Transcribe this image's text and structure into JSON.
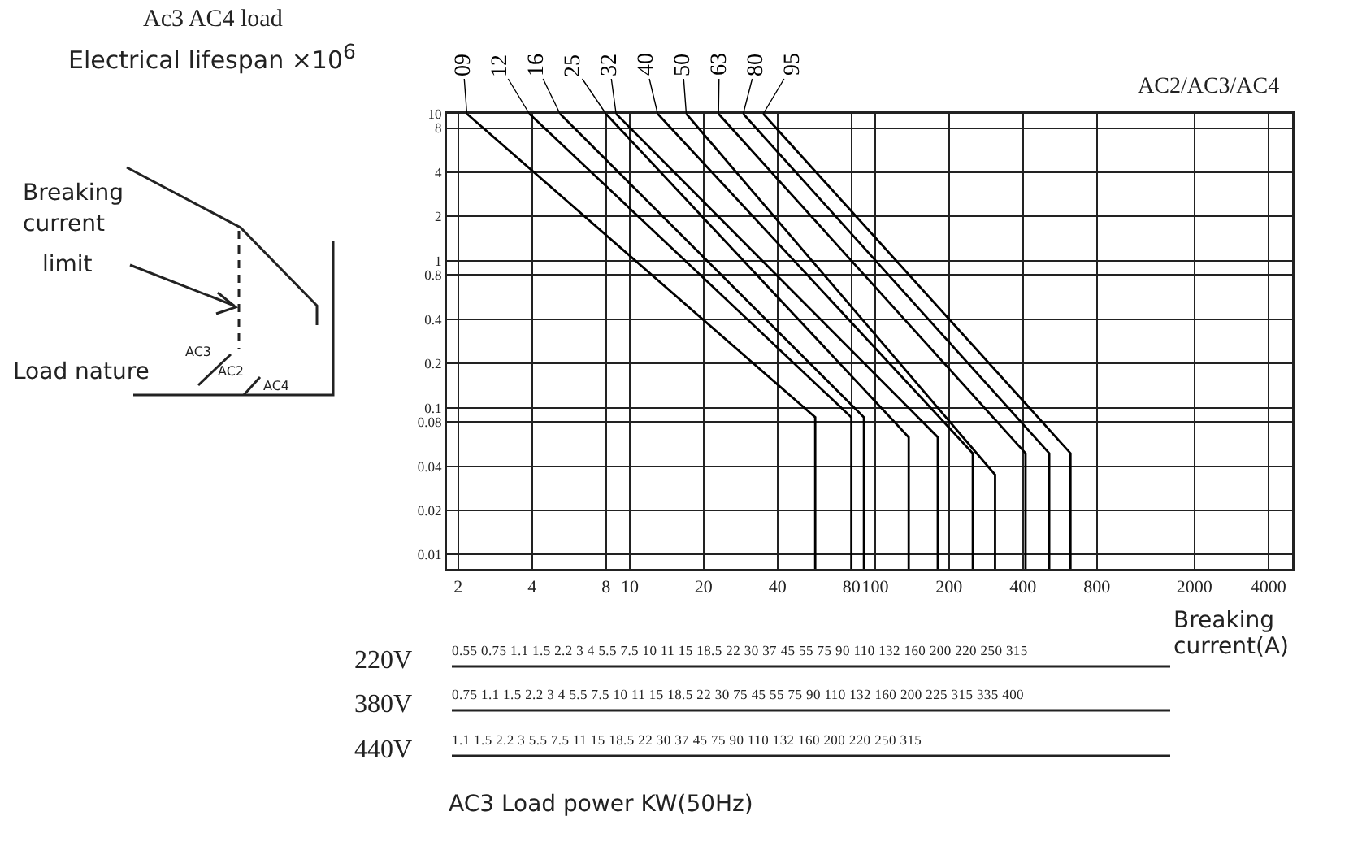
{
  "chart_data": {
    "type": "line",
    "title": "Ac3 AC4 load",
    "ylabel": "Electrical lifespan ×10$^{6}$",
    "xlabel": "Breaking current(A)",
    "log": "xy",
    "grid": true,
    "legend": false,
    "marker": "none",
    "line_style": "solid",
    "xlim": [
      1.8,
      5000
    ],
    "xticks": [
      2,
      4,
      8,
      10,
      20,
      40,
      80,
      100,
      200,
      400,
      800,
      2000,
      4000
    ],
    "ylim": [
      0.008,
      10
    ],
    "yticks": [
      10,
      8,
      4,
      2,
      1,
      0.8,
      0.4,
      0.2,
      0.1,
      0.08,
      0.04,
      0.02,
      0.01
    ],
    "series": [
      {
        "name": "09",
        "color": "#000000",
        "x": [
          2.17,
          57,
          57
        ],
        "values": [
          10,
          0.086,
          0.008
        ]
      },
      {
        "name": "12",
        "color": "#000000",
        "x": [
          3.9,
          80,
          80
        ],
        "values": [
          10,
          0.086,
          0.008
        ]
      },
      {
        "name": "16",
        "color": "#000000",
        "x": [
          5.2,
          90,
          90
        ],
        "values": [
          10,
          0.086,
          0.008
        ]
      },
      {
        "name": "25",
        "color": "#000000",
        "x": [
          8,
          137,
          137
        ],
        "values": [
          10,
          0.063,
          0.008
        ]
      },
      {
        "name": "32",
        "color": "#000000",
        "x": [
          8.8,
          180,
          180
        ],
        "values": [
          10,
          0.063,
          0.008
        ]
      },
      {
        "name": "40",
        "color": "#000000",
        "x": [
          13,
          250,
          250
        ],
        "values": [
          10,
          0.049,
          0.008
        ]
      },
      {
        "name": "50",
        "color": "#000000",
        "x": [
          17,
          308,
          308
        ],
        "values": [
          10,
          0.035,
          0.008
        ]
      },
      {
        "name": "63",
        "color": "#000000",
        "x": [
          23,
          410,
          410
        ],
        "values": [
          10,
          0.049,
          0.008
        ]
      },
      {
        "name": "80",
        "color": "#000000",
        "x": [
          29,
          512,
          512
        ],
        "values": [
          10,
          0.049,
          0.008
        ]
      },
      {
        "name": "95",
        "color": "#000000",
        "x": [
          35,
          625,
          625
        ],
        "values": [
          10,
          0.049,
          0.008
        ]
      }
    ],
    "annotations": [
      "AC2/AC3/AC4",
      "Breaking current",
      "limit",
      "Load nature",
      "AC3",
      "AC2",
      "AC4",
      "220V",
      "0.55 0.75 1.1 1.5 2.2 3 4 5.5 7.5 10 11 15 18.5 22 30 37 45 55 75 90 110 132 160 200 220 250 315",
      "380V",
      "0.75 1.1 1.5 2.2 3 4 5.5 7.5 10 11 15 18.5 22 30 75 45 55 75 90 110 132 160 200 225 315 335 400",
      "440V",
      "1.1 1.5 2.2 3 5.5 7.5 11 15 18.5 22 30 37 45 75 90 110 132 160 200 220 250 315",
      "AC3   Load power KW(50Hz)"
    ]
  }
}
